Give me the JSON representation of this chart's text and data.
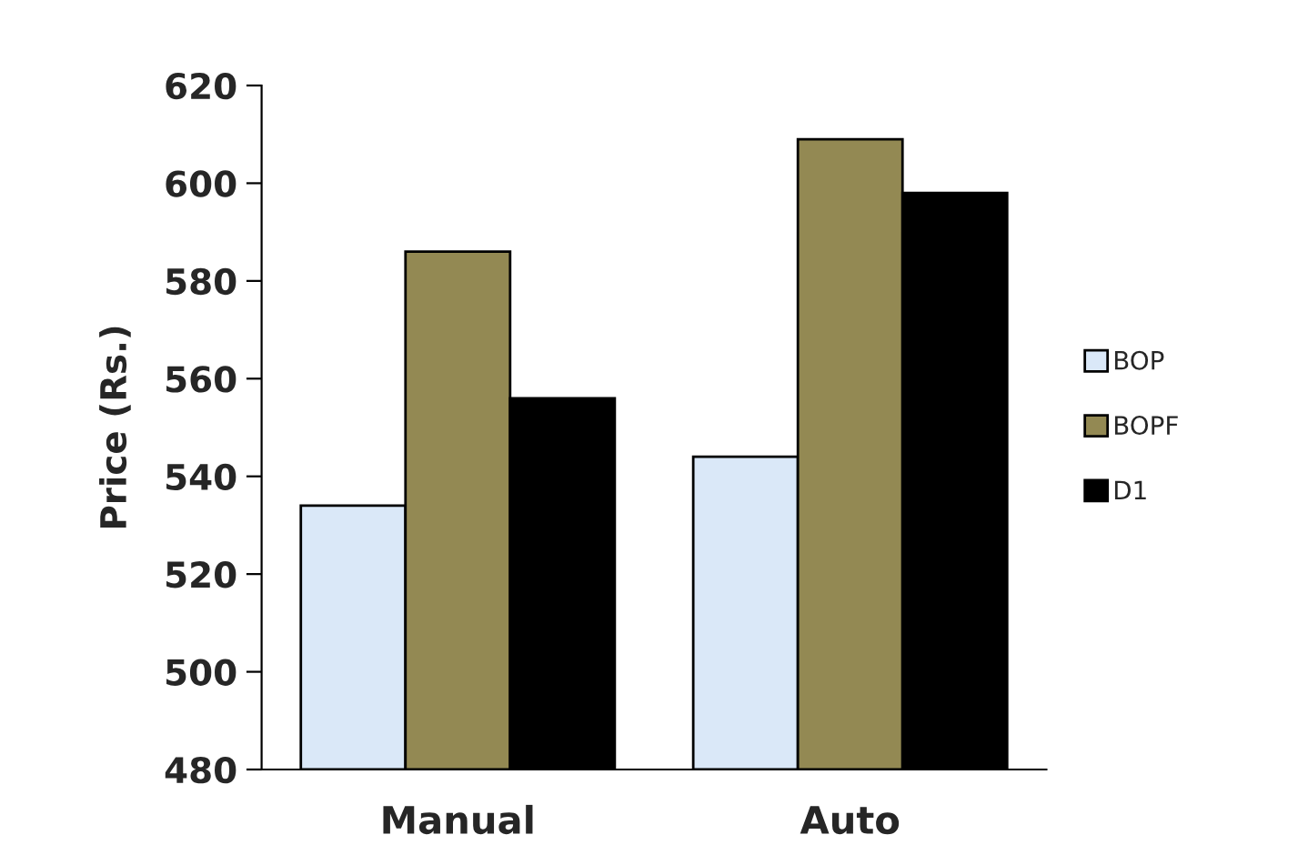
{
  "chart_data": {
    "type": "bar",
    "ylabel": "Price (Rs.)",
    "categories": [
      "Manual",
      "Auto"
    ],
    "series": [
      {
        "name": "BOP",
        "color": "#dae8f8",
        "values": [
          534,
          544
        ]
      },
      {
        "name": "BOPF",
        "color": "#938953",
        "values": [
          586,
          609
        ]
      },
      {
        "name": "D1",
        "color": "#000000",
        "values": [
          556,
          598
        ]
      }
    ],
    "ylim": [
      480,
      620
    ],
    "yticks": [
      480,
      500,
      520,
      540,
      560,
      580,
      600,
      620
    ],
    "grid": false,
    "legend": "right"
  }
}
